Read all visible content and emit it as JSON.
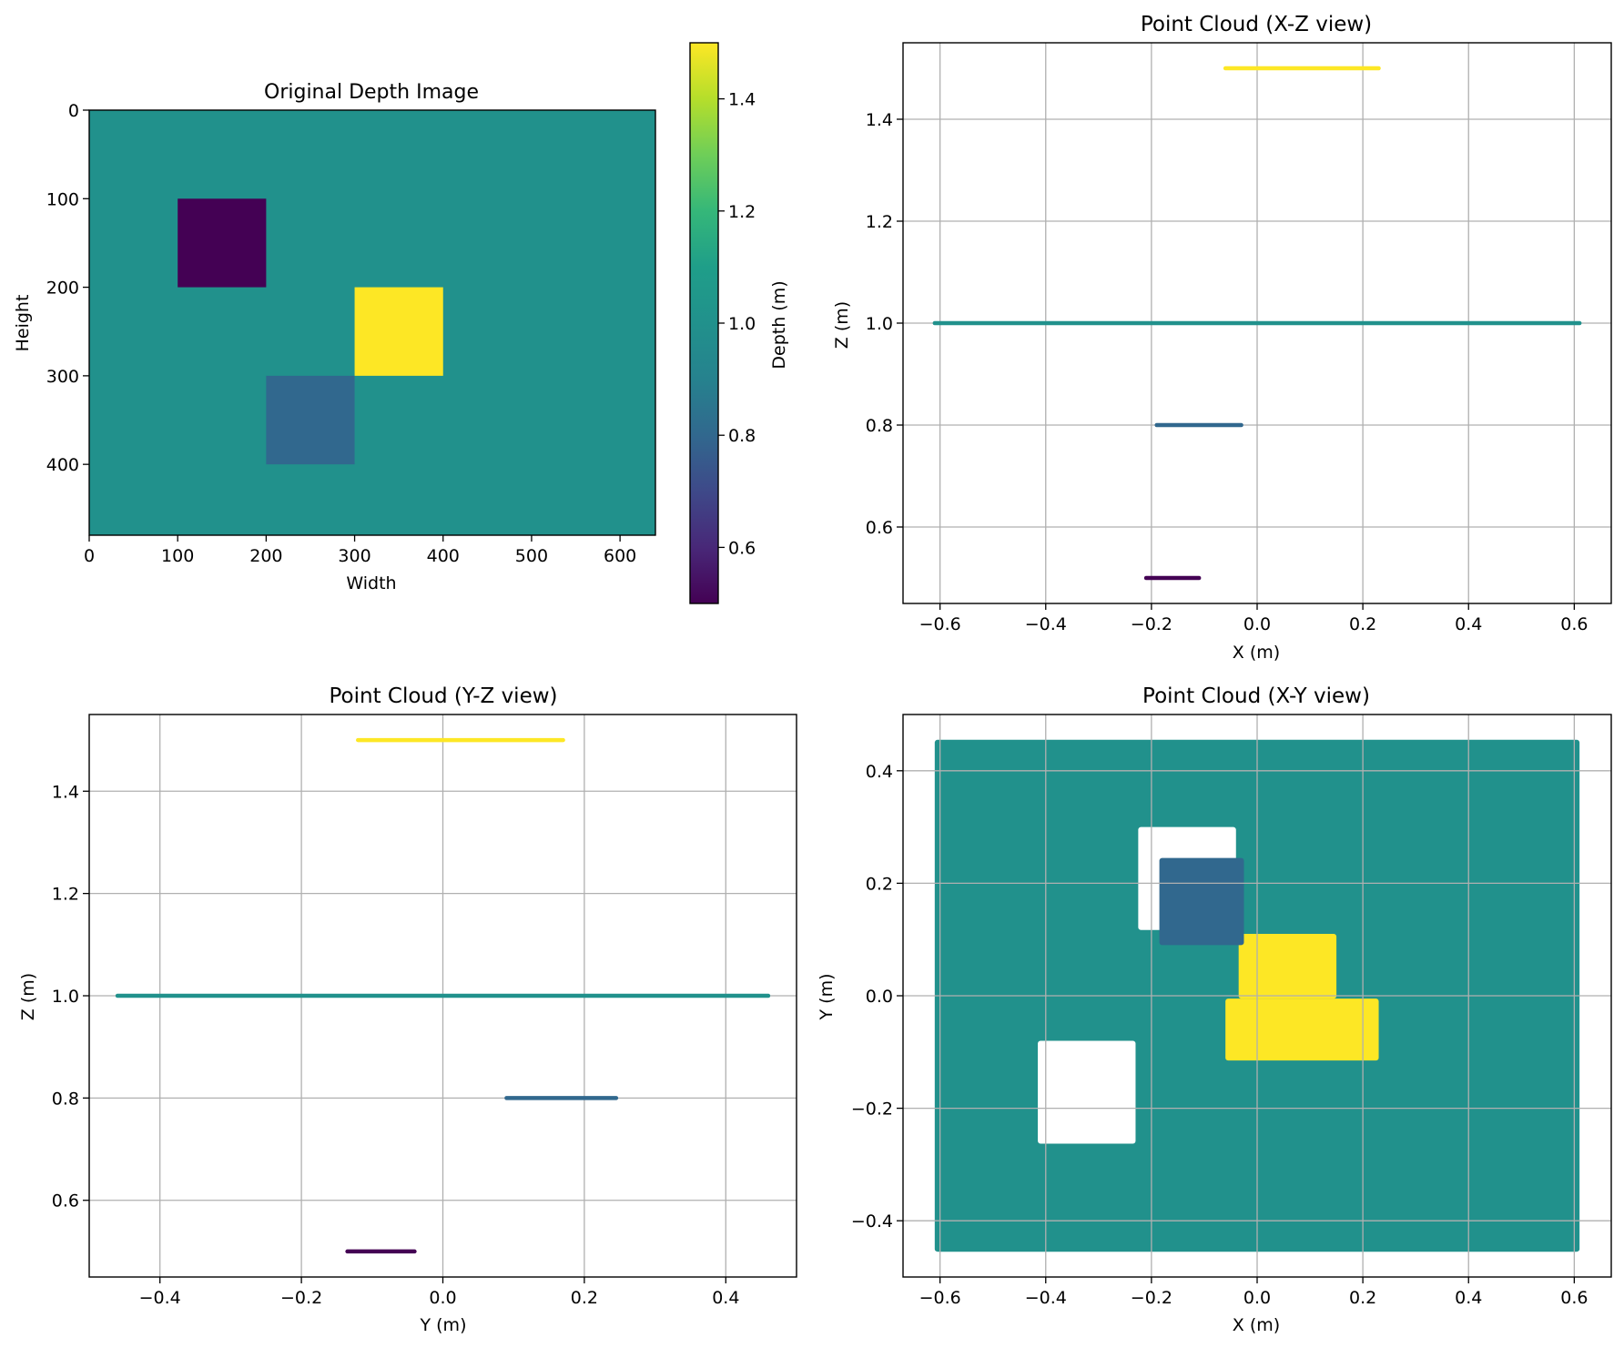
{
  "colors": {
    "teal": "#21918c",
    "purple": "#440154",
    "blue": "#31688e",
    "yellow": "#fde725",
    "grid": "#b0b0b0",
    "axis": "#000000"
  },
  "chart_data": [
    {
      "type": "heatmap",
      "title": "Original Depth Image",
      "xlabel": "Width",
      "ylabel": "Height",
      "xlim": [
        0,
        640
      ],
      "ylim": [
        480,
        0
      ],
      "xticks": [
        0,
        100,
        200,
        300,
        400,
        500,
        600
      ],
      "yticks": [
        0,
        100,
        200,
        300,
        400
      ],
      "background_depth": 1.0,
      "regions": [
        {
          "x": [
            100,
            200
          ],
          "y": [
            100,
            200
          ],
          "depth": 0.5
        },
        {
          "x": [
            300,
            400
          ],
          "y": [
            200,
            300
          ],
          "depth": 1.5
        },
        {
          "x": [
            200,
            300
          ],
          "y": [
            300,
            400
          ],
          "depth": 0.8
        }
      ],
      "colorbar": {
        "label": "Depth (m)",
        "range": [
          0.5,
          1.5
        ],
        "ticks": [
          0.6,
          0.8,
          1.0,
          1.2,
          1.4
        ]
      }
    },
    {
      "type": "scatter",
      "title": "Point Cloud (X-Z view)",
      "xlabel": "X (m)",
      "ylabel": "Z (m)",
      "xlim": [
        -0.67,
        0.67
      ],
      "ylim": [
        0.45,
        1.55
      ],
      "xticks": [
        -0.6,
        -0.4,
        -0.2,
        0.0,
        0.2,
        0.4,
        0.6
      ],
      "yticks": [
        0.6,
        0.8,
        1.0,
        1.2,
        1.4
      ],
      "grid": true,
      "segments": [
        {
          "x": [
            -0.61,
            0.61
          ],
          "z": 1.0,
          "color": "#21918c"
        },
        {
          "x": [
            -0.06,
            0.23
          ],
          "z": 1.5,
          "color": "#fde725"
        },
        {
          "x": [
            -0.19,
            -0.03
          ],
          "z": 0.8,
          "color": "#31688e"
        },
        {
          "x": [
            -0.21,
            -0.11
          ],
          "z": 0.5,
          "color": "#440154"
        }
      ]
    },
    {
      "type": "scatter",
      "title": "Point Cloud (Y-Z view)",
      "xlabel": "Y (m)",
      "ylabel": "Z (m)",
      "xlim": [
        -0.5,
        0.5
      ],
      "ylim": [
        0.45,
        1.55
      ],
      "xticks": [
        -0.4,
        -0.2,
        0.0,
        0.2,
        0.4
      ],
      "yticks": [
        0.6,
        0.8,
        1.0,
        1.2,
        1.4
      ],
      "grid": true,
      "segments": [
        {
          "x": [
            -0.46,
            0.46
          ],
          "z": 1.0,
          "color": "#21918c"
        },
        {
          "x": [
            -0.12,
            0.17
          ],
          "z": 1.5,
          "color": "#fde725"
        },
        {
          "x": [
            0.09,
            0.245
          ],
          "z": 0.8,
          "color": "#31688e"
        },
        {
          "x": [
            -0.135,
            -0.04
          ],
          "z": 0.5,
          "color": "#440154"
        }
      ]
    },
    {
      "type": "scatter",
      "title": "Point Cloud (X-Y view)",
      "xlabel": "X (m)",
      "ylabel": "Y (m)",
      "xlim": [
        -0.67,
        0.67
      ],
      "ylim": [
        -0.5,
        0.5
      ],
      "xticks": [
        -0.6,
        -0.4,
        -0.2,
        0.0,
        0.2,
        0.4,
        0.6
      ],
      "yticks": [
        -0.4,
        -0.2,
        0.0,
        0.2,
        0.4
      ],
      "grid": true,
      "regions": [
        {
          "x": [
            -0.61,
            0.61
          ],
          "y": [
            -0.455,
            0.455
          ],
          "color": "#21918c"
        },
        {
          "x": [
            -0.225,
            -0.04
          ],
          "y": [
            0.117,
            0.3
          ],
          "color": "#ffffff"
        },
        {
          "x": [
            -0.415,
            -0.23
          ],
          "y": [
            -0.263,
            -0.08
          ],
          "color": "#ffffff"
        },
        {
          "x": [
            -0.06,
            0.23
          ],
          "y": [
            -0.115,
            -0.005
          ],
          "color": "#fde725"
        },
        {
          "x": [
            -0.035,
            0.15
          ],
          "y": [
            -0.005,
            0.11
          ],
          "color": "#fde725"
        },
        {
          "x": [
            -0.185,
            -0.025
          ],
          "y": [
            0.09,
            0.245
          ],
          "color": "#31688e"
        }
      ]
    }
  ]
}
